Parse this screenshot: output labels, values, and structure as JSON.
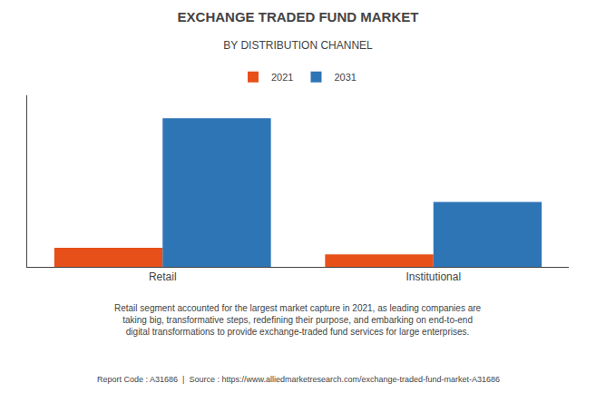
{
  "chart_data": {
    "type": "bar",
    "title": "EXCHANGE TRADED FUND MARKET",
    "subtitle": "BY DISTRIBUTION CHANNEL",
    "categories": [
      "Retail",
      "Institutional"
    ],
    "series": [
      {
        "name": "2021",
        "color": "#e8501a",
        "values": [
          1.0,
          0.65
        ]
      },
      {
        "name": "2031",
        "color": "#2e75b6",
        "values": [
          7.8,
          3.4
        ]
      }
    ],
    "ylim": [
      0,
      9.0
    ],
    "grid": false,
    "tick_labels": "x",
    "annotations": [
      "Retail segment accounted for the largest market capture in 2021, as leading companies are\ntaking big, transformative steps, redefining their purpose, and embarking on end-to-end\ndigital transformations to provide exchange-traded fund services for large enterprises.",
      "Report Code : A31686  |  Source : https://www.alliedmarketresearch.com/exchange-traded-fund-market-A31686"
    ]
  }
}
